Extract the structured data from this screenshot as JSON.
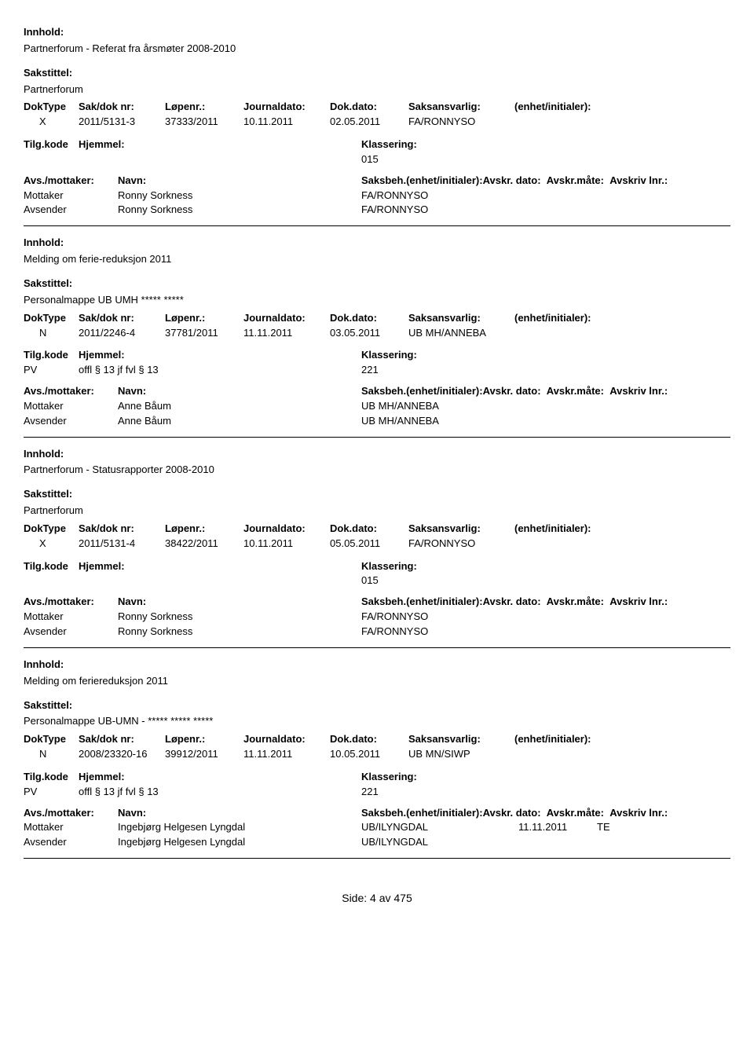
{
  "labels": {
    "innhold": "Innhold:",
    "sakstittel": "Sakstittel:",
    "doktype": "DokType",
    "sakdok": "Sak/dok nr:",
    "lopenr": "Løpenr.:",
    "journaldato": "Journaldato:",
    "dokdato": "Dok.dato:",
    "saksansvarlig": "Saksansvarlig:",
    "enhet": "(enhet/initialer):",
    "tilgkode": "Tilg.kode",
    "hjemmel": "Hjemmel:",
    "klassering": "Klassering:",
    "avsmottaker": "Avs./mottaker:",
    "navn": "Navn:",
    "saksbeh": "Saksbeh.(enhet/initialer):",
    "avskrdato": "Avskr. dato:",
    "avskrmate": "Avskr.måte:",
    "avskrlnr": "Avskriv lnr.:",
    "mottaker": "Mottaker",
    "avsender": "Avsender"
  },
  "records": [
    {
      "innhold": "Partnerforum - Referat fra årsmøter 2008-2010",
      "sakstittel": "Partnerforum",
      "doktype": "X",
      "sakdok": "2011/5131-3",
      "lopenr": "37333/2011",
      "journaldato": "10.11.2011",
      "dokdato": "02.05.2011",
      "saksansvarlig": "FA/RONNYSO",
      "tilgkode": "",
      "hjemmel": "",
      "klassering": "015",
      "parties": [
        {
          "type": "Mottaker",
          "navn": "Ronny Sorkness",
          "saksbeh": "FA/RONNYSO",
          "avskrdato": "",
          "avskrmate": ""
        },
        {
          "type": "Avsender",
          "navn": "Ronny Sorkness",
          "saksbeh": "FA/RONNYSO",
          "avskrdato": "",
          "avskrmate": ""
        }
      ],
      "show_party_header": false
    },
    {
      "innhold": "Melding om ferie-reduksjon 2011",
      "sakstittel": "Personalmappe UB UMH ***** *****",
      "doktype": "N",
      "sakdok": "2011/2246-4",
      "lopenr": "37781/2011",
      "journaldato": "11.11.2011",
      "dokdato": "03.05.2011",
      "saksansvarlig": "UB MH/ANNEBA",
      "tilgkode": "PV",
      "hjemmel": "offl § 13 jf fvl § 13",
      "klassering": "221",
      "parties": [
        {
          "type": "Mottaker",
          "navn": "Anne Båum",
          "saksbeh": "UB MH/ANNEBA",
          "avskrdato": "",
          "avskrmate": ""
        },
        {
          "type": "Avsender",
          "navn": "Anne Båum",
          "saksbeh": "UB MH/ANNEBA",
          "avskrdato": "",
          "avskrmate": ""
        }
      ],
      "show_party_header": false
    },
    {
      "innhold": "Partnerforum - Statusrapporter 2008-2010",
      "sakstittel": "Partnerforum",
      "doktype": "X",
      "sakdok": "2011/5131-4",
      "lopenr": "38422/2011",
      "journaldato": "10.11.2011",
      "dokdato": "05.05.2011",
      "saksansvarlig": "FA/RONNYSO",
      "tilgkode": "",
      "hjemmel": "",
      "klassering": "015",
      "parties": [
        {
          "type": "Mottaker",
          "navn": "Ronny Sorkness",
          "saksbeh": "FA/RONNYSO",
          "avskrdato": "",
          "avskrmate": ""
        },
        {
          "type": "Avsender",
          "navn": "Ronny Sorkness",
          "saksbeh": "FA/RONNYSO",
          "avskrdato": "",
          "avskrmate": ""
        }
      ],
      "show_party_header": true
    },
    {
      "innhold": "Melding om feriereduksjon 2011",
      "sakstittel": "Personalmappe UB-UMN - ***** ***** *****",
      "doktype": "N",
      "sakdok": "2008/23320-16",
      "lopenr": "39912/2011",
      "journaldato": "11.11.2011",
      "dokdato": "10.05.2011",
      "saksansvarlig": "UB MN/SIWP",
      "tilgkode": "PV",
      "hjemmel": "offl § 13 jf fvl § 13",
      "klassering": "221",
      "parties": [
        {
          "type": "Mottaker",
          "navn": "Ingebjørg Helgesen Lyngdal",
          "saksbeh": "UB/ILYNGDAL",
          "avskrdato": "11.11.2011",
          "avskrmate": "TE"
        },
        {
          "type": "Avsender",
          "navn": "Ingebjørg Helgesen Lyngdal",
          "saksbeh": "UB/ILYNGDAL",
          "avskrdato": "",
          "avskrmate": ""
        }
      ],
      "show_party_header": true
    }
  ],
  "footer": "Side: 4 av 475"
}
